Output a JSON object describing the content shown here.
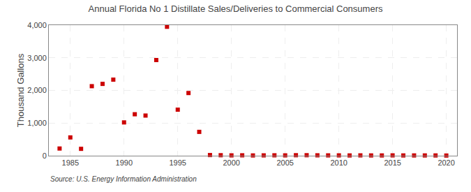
{
  "chart_data": {
    "type": "scatter",
    "title": "Annual Florida No 1 Distillate Sales/Deliveries to Commercial Consumers",
    "ylabel": "Thousand Gallons",
    "annotations": [
      "Source: U.S. Energy Information Administration"
    ],
    "x": [
      1984,
      1985,
      1986,
      1987,
      1988,
      1989,
      1990,
      1991,
      1992,
      1993,
      1994,
      1995,
      1996,
      1997,
      1998,
      1999,
      2000,
      2001,
      2002,
      2003,
      2004,
      2005,
      2006,
      2007,
      2008,
      2009,
      2010,
      2011,
      2012,
      2013,
      2014,
      2015,
      2016,
      2017,
      2018,
      2019,
      2020
    ],
    "values": [
      220,
      560,
      210,
      2130,
      2200,
      2330,
      1020,
      1270,
      1230,
      2930,
      3950,
      1410,
      1920,
      730,
      20,
      15,
      10,
      12,
      8,
      10,
      12,
      10,
      15,
      15,
      12,
      10,
      10,
      8,
      10,
      8,
      8,
      10,
      8,
      8,
      8,
      8,
      5
    ],
    "color": "#cc0000",
    "marker": "square",
    "xlim": [
      1983,
      2021
    ],
    "xticks": [
      1985,
      1990,
      1995,
      2000,
      2005,
      2010,
      2015,
      2020
    ],
    "ylim": [
      0,
      4000
    ],
    "yticks": [
      0,
      {
        "value": 1000,
        "label": "1,000"
      },
      {
        "value": 2000,
        "label": "2,000"
      },
      {
        "value": 3000,
        "label": "3,000"
      },
      {
        "value": 4000,
        "label": "4,000"
      }
    ],
    "grid": true
  }
}
